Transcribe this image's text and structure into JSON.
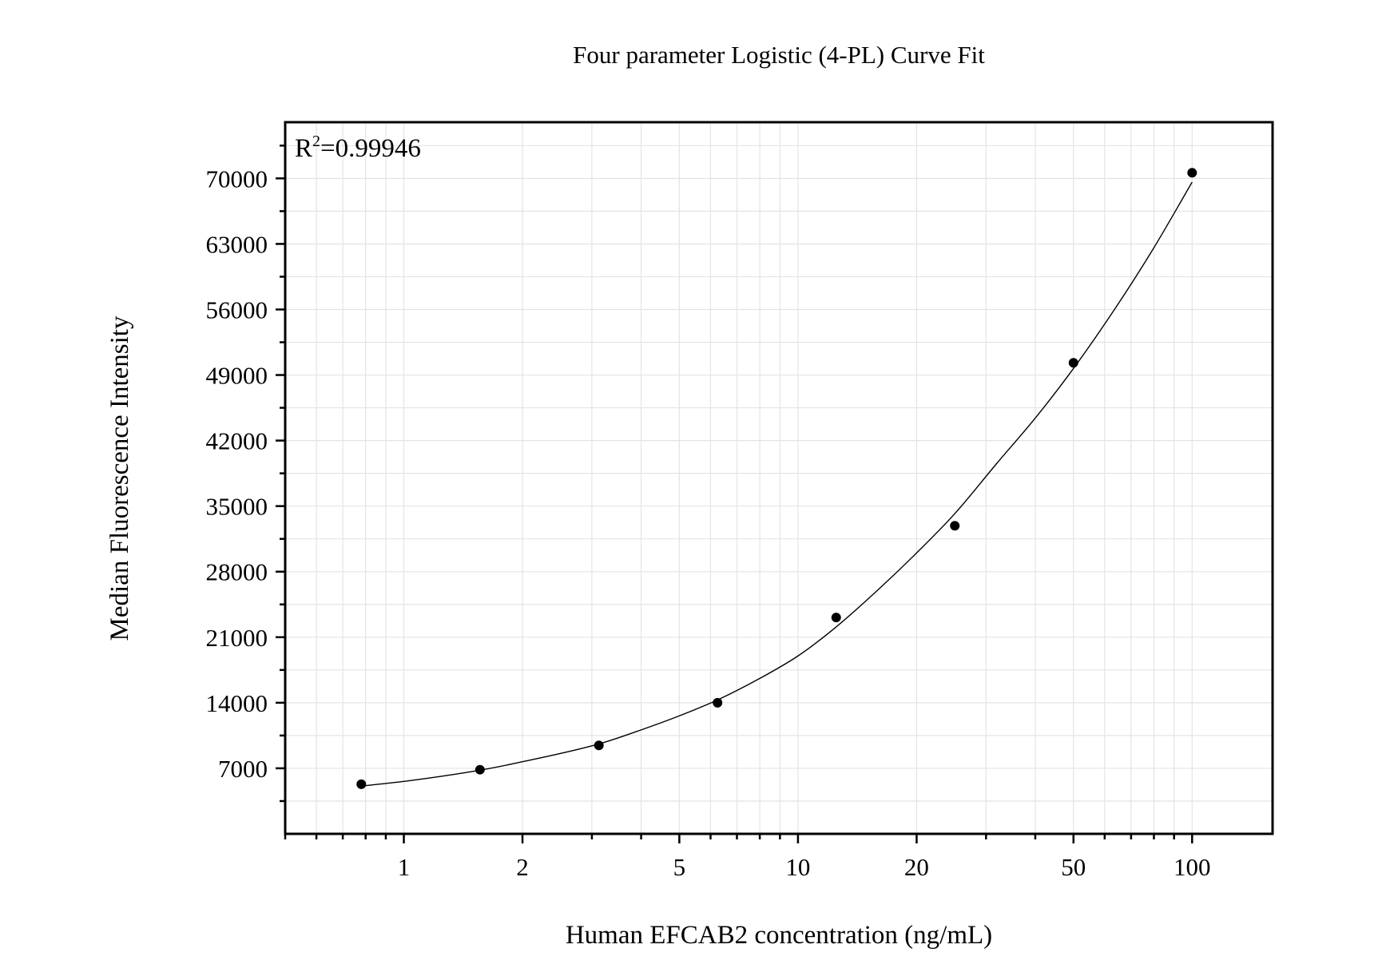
{
  "chart_data": {
    "type": "scatter",
    "title": "Four parameter Logistic (4-PL) Curve Fit",
    "xlabel": "Human EFCAB2 concentration (ng/mL)",
    "ylabel": "Median Fluorescence Intensity",
    "x_scale": "log",
    "xlim": [
      0.5,
      160
    ],
    "ylim": [
      0,
      76000
    ],
    "x_ticks": [
      1,
      2,
      5,
      10,
      20,
      50,
      100
    ],
    "x_tick_labels": [
      "1",
      "2",
      "5",
      "10",
      "20",
      "50",
      "100"
    ],
    "y_ticks": [
      7000,
      14000,
      21000,
      28000,
      35000,
      42000,
      49000,
      56000,
      63000,
      70000
    ],
    "y_tick_labels": [
      "7000",
      "14000",
      "21000",
      "28000",
      "35000",
      "42000",
      "49000",
      "56000",
      "63000",
      "70000"
    ],
    "grid": true,
    "points": {
      "x": [
        0.78,
        1.56,
        3.125,
        6.25,
        12.5,
        25,
        50,
        100
      ],
      "y": [
        5300,
        6850,
        9450,
        14000,
        23100,
        32900,
        50300,
        70600
      ]
    },
    "fit_curve": {
      "model": "4-PL",
      "x": [
        0.78,
        1.0,
        1.56,
        2.0,
        3.125,
        4.0,
        5.0,
        6.25,
        8.0,
        10.0,
        12.5,
        16.0,
        20.0,
        25.0,
        32.0,
        40.0,
        50.0,
        64.0,
        80.0,
        100.0
      ],
      "y": [
        5100,
        5600,
        6800,
        7700,
        9600,
        11100,
        12600,
        14300,
        16600,
        19000,
        22100,
        26100,
        30000,
        34200,
        39600,
        44400,
        49700,
        56200,
        62600,
        69600
      ]
    },
    "annotations": [
      {
        "text_base": "R",
        "text_sup": "2",
        "text_value": "=0.99946",
        "position": "top-left"
      }
    ]
  }
}
